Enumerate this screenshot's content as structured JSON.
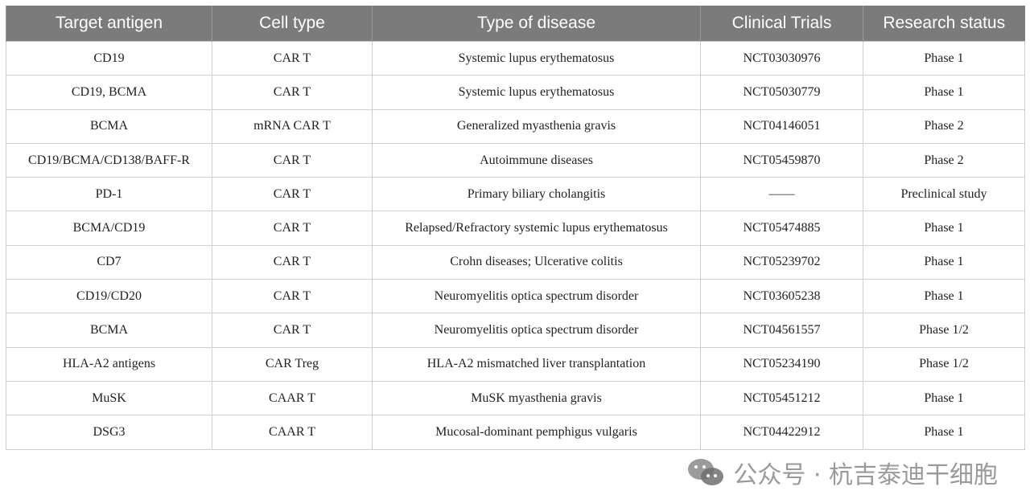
{
  "table": {
    "headers": [
      "Target antigen",
      "Cell type",
      "Type of disease",
      "Clinical Trials",
      "Research status"
    ],
    "rows": [
      [
        "CD19",
        "CAR T",
        "Systemic lupus erythematosus",
        "NCT03030976",
        "Phase 1"
      ],
      [
        "CD19, BCMA",
        "CAR T",
        "Systemic lupus erythematosus",
        "NCT05030779",
        "Phase 1"
      ],
      [
        "BCMA",
        "mRNA CAR T",
        "Generalized myasthenia gravis",
        "NCT04146051",
        "Phase 2"
      ],
      [
        "CD19/BCMA/CD138/BAFF-R",
        "CAR T",
        "Autoimmune diseases",
        "NCT05459870",
        "Phase 2"
      ],
      [
        "PD-1",
        "CAR T",
        "Primary biliary cholangitis",
        "——",
        "Preclinical study"
      ],
      [
        "BCMA/CD19",
        "CAR T",
        "Relapsed/Refractory systemic lupus erythematosus",
        "NCT05474885",
        "Phase 1"
      ],
      [
        "CD7",
        "CAR T",
        "Crohn diseases; Ulcerative colitis",
        "NCT05239702",
        "Phase 1"
      ],
      [
        "CD19/CD20",
        "CAR T",
        "Neuromyelitis optica spectrum disorder",
        "NCT03605238",
        "Phase 1"
      ],
      [
        "BCMA",
        "CAR T",
        "Neuromyelitis optica spectrum disorder",
        "NCT04561557",
        "Phase 1/2"
      ],
      [
        "HLA-A2 antigens",
        "CAR Treg",
        "HLA-A2 mismatched liver transplantation",
        "NCT05234190",
        "Phase 1/2"
      ],
      [
        "MuSK",
        "CAAR T",
        "MuSK myasthenia gravis",
        "NCT05451212",
        "Phase 1"
      ],
      [
        "DSG3",
        "CAAR T",
        "Mucosal-dominant pemphigus vulgaris",
        "NCT04422912",
        "Phase 1"
      ]
    ]
  },
  "watermark": {
    "text": "公众号 · 杭吉泰迪干细胞",
    "icon": "wechat-icon"
  },
  "colors": {
    "header_bg": "#7b7b7b",
    "grid": "#cfcfcf"
  }
}
